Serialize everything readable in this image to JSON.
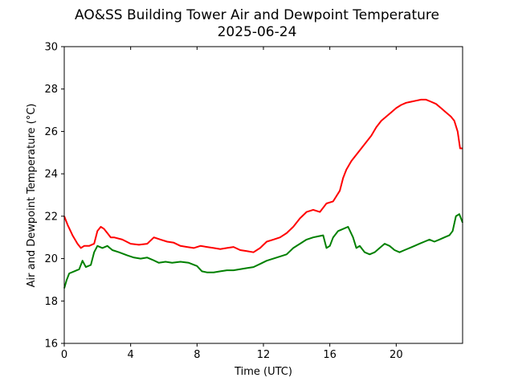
{
  "chart_data": {
    "type": "line",
    "title": "AO&SS Building Tower Air and Dewpoint Temperature",
    "subtitle": "2025-06-24",
    "xlabel": "Time (UTC)",
    "ylabel": "Air and Dewpoint Temperature (°C)",
    "xlim": [
      0,
      24
    ],
    "ylim": [
      16,
      30
    ],
    "xticks": [
      0,
      4,
      8,
      12,
      16,
      20
    ],
    "yticks": [
      16,
      18,
      20,
      22,
      24,
      26,
      28,
      30
    ],
    "grid": false,
    "legend": "none",
    "series": [
      {
        "color": "#ff0000",
        "x": [
          0,
          0.2,
          0.5,
          0.8,
          1.0,
          1.2,
          1.5,
          1.8,
          2.0,
          2.2,
          2.4,
          2.6,
          2.8,
          3.0,
          3.5,
          4.0,
          4.5,
          5.0,
          5.4,
          5.8,
          6.2,
          6.6,
          7.0,
          7.4,
          7.8,
          8.2,
          8.6,
          9.0,
          9.4,
          9.8,
          10.2,
          10.6,
          11.0,
          11.4,
          11.8,
          12.2,
          12.6,
          13.0,
          13.4,
          13.8,
          14.2,
          14.6,
          15.0,
          15.4,
          15.8,
          16.2,
          16.6,
          16.8,
          17.0,
          17.3,
          17.6,
          17.9,
          18.2,
          18.5,
          18.8,
          19.1,
          19.4,
          19.7,
          20.0,
          20.3,
          20.6,
          20.9,
          21.2,
          21.5,
          21.8,
          22.1,
          22.4,
          22.7,
          23.0,
          23.3,
          23.5,
          23.7,
          23.85,
          24.0
        ],
        "y": [
          22.0,
          21.6,
          21.1,
          20.7,
          20.5,
          20.6,
          20.6,
          20.7,
          21.3,
          21.5,
          21.4,
          21.2,
          21.0,
          21.0,
          20.9,
          20.7,
          20.65,
          20.7,
          21.0,
          20.9,
          20.8,
          20.75,
          20.6,
          20.55,
          20.5,
          20.6,
          20.55,
          20.5,
          20.45,
          20.5,
          20.55,
          20.4,
          20.35,
          20.3,
          20.5,
          20.8,
          20.9,
          21.0,
          21.2,
          21.5,
          21.9,
          22.2,
          22.3,
          22.2,
          22.6,
          22.7,
          23.2,
          23.8,
          24.2,
          24.6,
          24.9,
          25.2,
          25.5,
          25.8,
          26.2,
          26.5,
          26.7,
          26.9,
          27.1,
          27.25,
          27.35,
          27.4,
          27.45,
          27.5,
          27.5,
          27.4,
          27.3,
          27.1,
          26.9,
          26.7,
          26.5,
          26.0,
          25.2,
          25.2
        ]
      },
      {
        "color": "#008000",
        "x": [
          0,
          0.15,
          0.3,
          0.6,
          0.9,
          1.1,
          1.3,
          1.6,
          1.8,
          2.0,
          2.3,
          2.6,
          2.9,
          3.3,
          3.8,
          4.2,
          4.6,
          5.0,
          5.3,
          5.7,
          6.1,
          6.5,
          7.0,
          7.5,
          8.0,
          8.3,
          8.6,
          9.0,
          9.4,
          9.8,
          10.2,
          10.6,
          11.0,
          11.4,
          11.8,
          12.2,
          12.6,
          13.0,
          13.4,
          13.8,
          14.2,
          14.6,
          15.0,
          15.3,
          15.6,
          15.8,
          16.0,
          16.2,
          16.5,
          16.8,
          17.1,
          17.4,
          17.6,
          17.8,
          18.1,
          18.4,
          18.7,
          19.0,
          19.3,
          19.6,
          19.9,
          20.2,
          20.5,
          20.8,
          21.1,
          21.4,
          21.7,
          22.0,
          22.3,
          22.6,
          22.9,
          23.2,
          23.4,
          23.6,
          23.8,
          24.0
        ],
        "y": [
          18.6,
          19.0,
          19.3,
          19.4,
          19.5,
          19.9,
          19.6,
          19.7,
          20.3,
          20.6,
          20.5,
          20.6,
          20.4,
          20.3,
          20.15,
          20.05,
          20.0,
          20.05,
          19.95,
          19.8,
          19.85,
          19.8,
          19.85,
          19.8,
          19.65,
          19.4,
          19.35,
          19.35,
          19.4,
          19.45,
          19.45,
          19.5,
          19.55,
          19.6,
          19.75,
          19.9,
          20.0,
          20.1,
          20.2,
          20.5,
          20.7,
          20.9,
          21.0,
          21.05,
          21.1,
          20.5,
          20.6,
          21.0,
          21.3,
          21.4,
          21.5,
          21.0,
          20.5,
          20.6,
          20.3,
          20.2,
          20.3,
          20.5,
          20.7,
          20.6,
          20.4,
          20.3,
          20.4,
          20.5,
          20.6,
          20.7,
          20.8,
          20.9,
          20.8,
          20.9,
          21.0,
          21.1,
          21.3,
          22.0,
          22.1,
          21.7
        ]
      }
    ]
  }
}
